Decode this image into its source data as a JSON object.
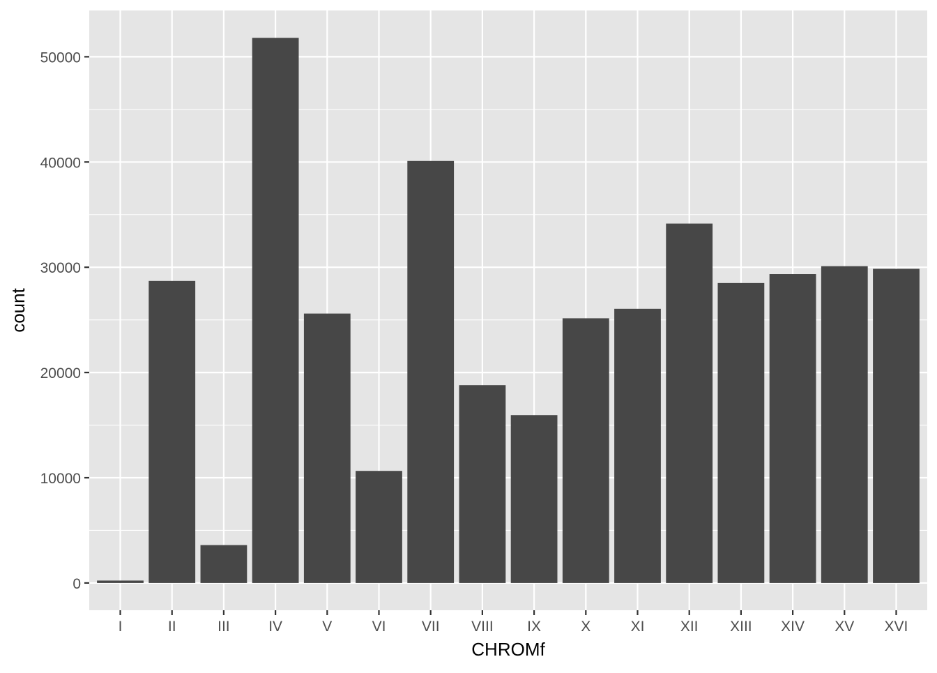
{
  "chart_data": {
    "type": "bar",
    "title": "",
    "xlabel": "CHROMf",
    "ylabel": "count",
    "categories": [
      "I",
      "II",
      "III",
      "IV",
      "V",
      "VI",
      "VII",
      "VIII",
      "IX",
      "X",
      "XI",
      "XII",
      "XIII",
      "XIV",
      "XV",
      "XVI"
    ],
    "values": [
      230,
      28700,
      3600,
      51800,
      25600,
      10650,
      40100,
      18800,
      15950,
      25150,
      26050,
      34150,
      28500,
      29350,
      30100,
      29850
    ],
    "yticks": [
      0,
      10000,
      20000,
      30000,
      40000,
      50000
    ],
    "ytick_labels": [
      "0",
      "10000",
      "20000",
      "30000",
      "40000",
      "50000"
    ],
    "ylim": [
      -2590,
      54400
    ],
    "grid": true,
    "legend": "none",
    "colors": {
      "panel_background": "#E5E5E5",
      "grid_major": "#FFFFFF",
      "bar_fill": "#474747",
      "tick_text": "#4D4D4D",
      "axis_title": "#000000"
    }
  }
}
